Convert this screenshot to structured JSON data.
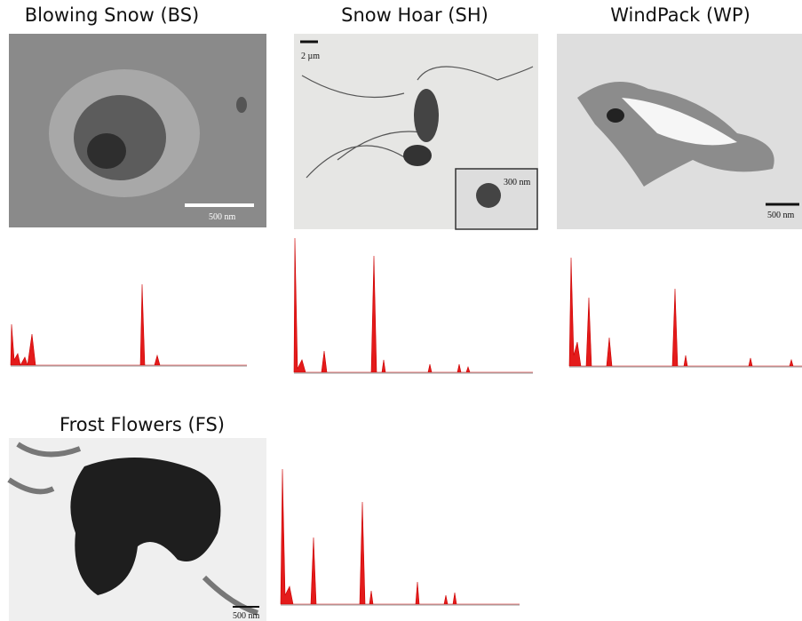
{
  "panels": [
    {
      "title": "Blowing Snow (BS)",
      "scale_label": "500 nm"
    },
    {
      "title": "Snow Hoar (SH)",
      "scale_label": "2 µm",
      "inset_scale_label": "300 nm"
    },
    {
      "title": "WindPack (WP)",
      "scale_label": "500 nm"
    },
    {
      "title": "Frost Flowers (FS)",
      "scale_label": "500 nm"
    }
  ]
}
